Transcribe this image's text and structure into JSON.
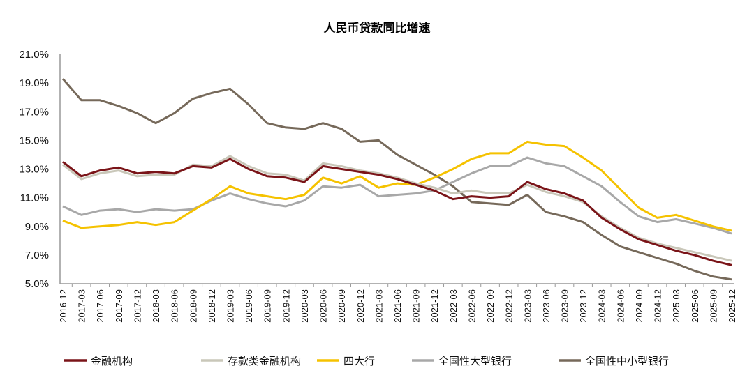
{
  "chart_data": {
    "type": "line",
    "title": "人民币贷款同比增速",
    "xlabel": "",
    "ylabel": "",
    "ylim": [
      5.0,
      21.0
    ],
    "yticks": [
      "5.0%",
      "7.0%",
      "9.0%",
      "11.0%",
      "13.0%",
      "15.0%",
      "17.0%",
      "19.0%",
      "21.0%"
    ],
    "grid": false,
    "legend_position": "bottom",
    "x": [
      "2016-12",
      "2017-03",
      "2017-06",
      "2017-09",
      "2017-12",
      "2018-03",
      "2018-06",
      "2018-09",
      "2018-12",
      "2019-03",
      "2019-06",
      "2019-09",
      "2019-12",
      "2020-03",
      "2020-06",
      "2020-09",
      "2020-12",
      "2021-03",
      "2021-06",
      "2021-09",
      "2021-12",
      "2022-03",
      "2022-06",
      "2022-09",
      "2022-12",
      "2023-03",
      "2023-06",
      "2023-09",
      "2023-12",
      "2024-03",
      "2024-06",
      "2024-09",
      "2024-12",
      "2025-03",
      "2025-06",
      "2025-09",
      "2025-12"
    ],
    "series": [
      {
        "name": "金融机构",
        "color": "#7A1418",
        "values": [
          13.5,
          12.5,
          12.9,
          13.1,
          12.7,
          12.8,
          12.7,
          13.2,
          13.1,
          13.7,
          13.0,
          12.5,
          12.4,
          12.1,
          13.2,
          13.0,
          12.8,
          12.6,
          12.3,
          11.9,
          11.5,
          10.9,
          11.1,
          11.0,
          11.1,
          12.1,
          11.6,
          11.3,
          10.8,
          9.6,
          8.8,
          8.1,
          7.7,
          7.3,
          7.0,
          6.6,
          6.3
        ]
      },
      {
        "name": "存款类金融机构",
        "color": "#C9C7B9",
        "values": [
          13.3,
          12.3,
          12.7,
          12.9,
          12.5,
          12.6,
          12.6,
          13.3,
          13.2,
          13.9,
          13.2,
          12.7,
          12.6,
          12.2,
          13.4,
          13.2,
          12.9,
          12.7,
          12.4,
          12.0,
          11.7,
          11.3,
          11.5,
          11.3,
          11.3,
          11.9,
          11.4,
          11.1,
          10.7,
          9.7,
          8.9,
          8.2,
          7.8,
          7.5,
          7.2,
          6.9,
          6.6
        ]
      },
      {
        "name": "四大行",
        "color": "#F5C200",
        "values": [
          9.4,
          8.9,
          9.0,
          9.1,
          9.3,
          9.1,
          9.3,
          10.1,
          10.9,
          11.8,
          11.3,
          11.1,
          10.9,
          11.2,
          12.4,
          12.0,
          12.5,
          11.7,
          12.0,
          11.9,
          12.4,
          13.0,
          13.7,
          14.1,
          14.1,
          14.9,
          14.7,
          14.6,
          13.8,
          12.9,
          11.6,
          10.3,
          9.6,
          9.8,
          9.4,
          9.0,
          8.7
        ]
      },
      {
        "name": "全国性大型银行",
        "color": "#A8A8A8",
        "values": [
          10.4,
          9.8,
          10.1,
          10.2,
          10.0,
          10.2,
          10.1,
          10.2,
          10.8,
          11.3,
          10.9,
          10.6,
          10.4,
          10.8,
          11.8,
          11.7,
          11.9,
          11.1,
          11.2,
          11.3,
          11.5,
          12.1,
          12.7,
          13.2,
          13.2,
          13.8,
          13.4,
          13.2,
          12.5,
          11.8,
          10.7,
          9.7,
          9.3,
          9.5,
          9.2,
          8.9,
          8.5
        ]
      },
      {
        "name": "全国性中小型银行",
        "color": "#76695A",
        "values": [
          19.3,
          17.8,
          17.8,
          17.4,
          16.9,
          16.2,
          16.9,
          17.9,
          18.3,
          18.6,
          17.5,
          16.2,
          15.9,
          15.8,
          16.2,
          15.8,
          14.9,
          15.0,
          14.0,
          13.3,
          12.6,
          11.8,
          10.7,
          10.6,
          10.5,
          11.2,
          10.0,
          9.7,
          9.3,
          8.4,
          7.6,
          7.2,
          6.8,
          6.4,
          5.9,
          5.5,
          5.3
        ]
      }
    ]
  }
}
